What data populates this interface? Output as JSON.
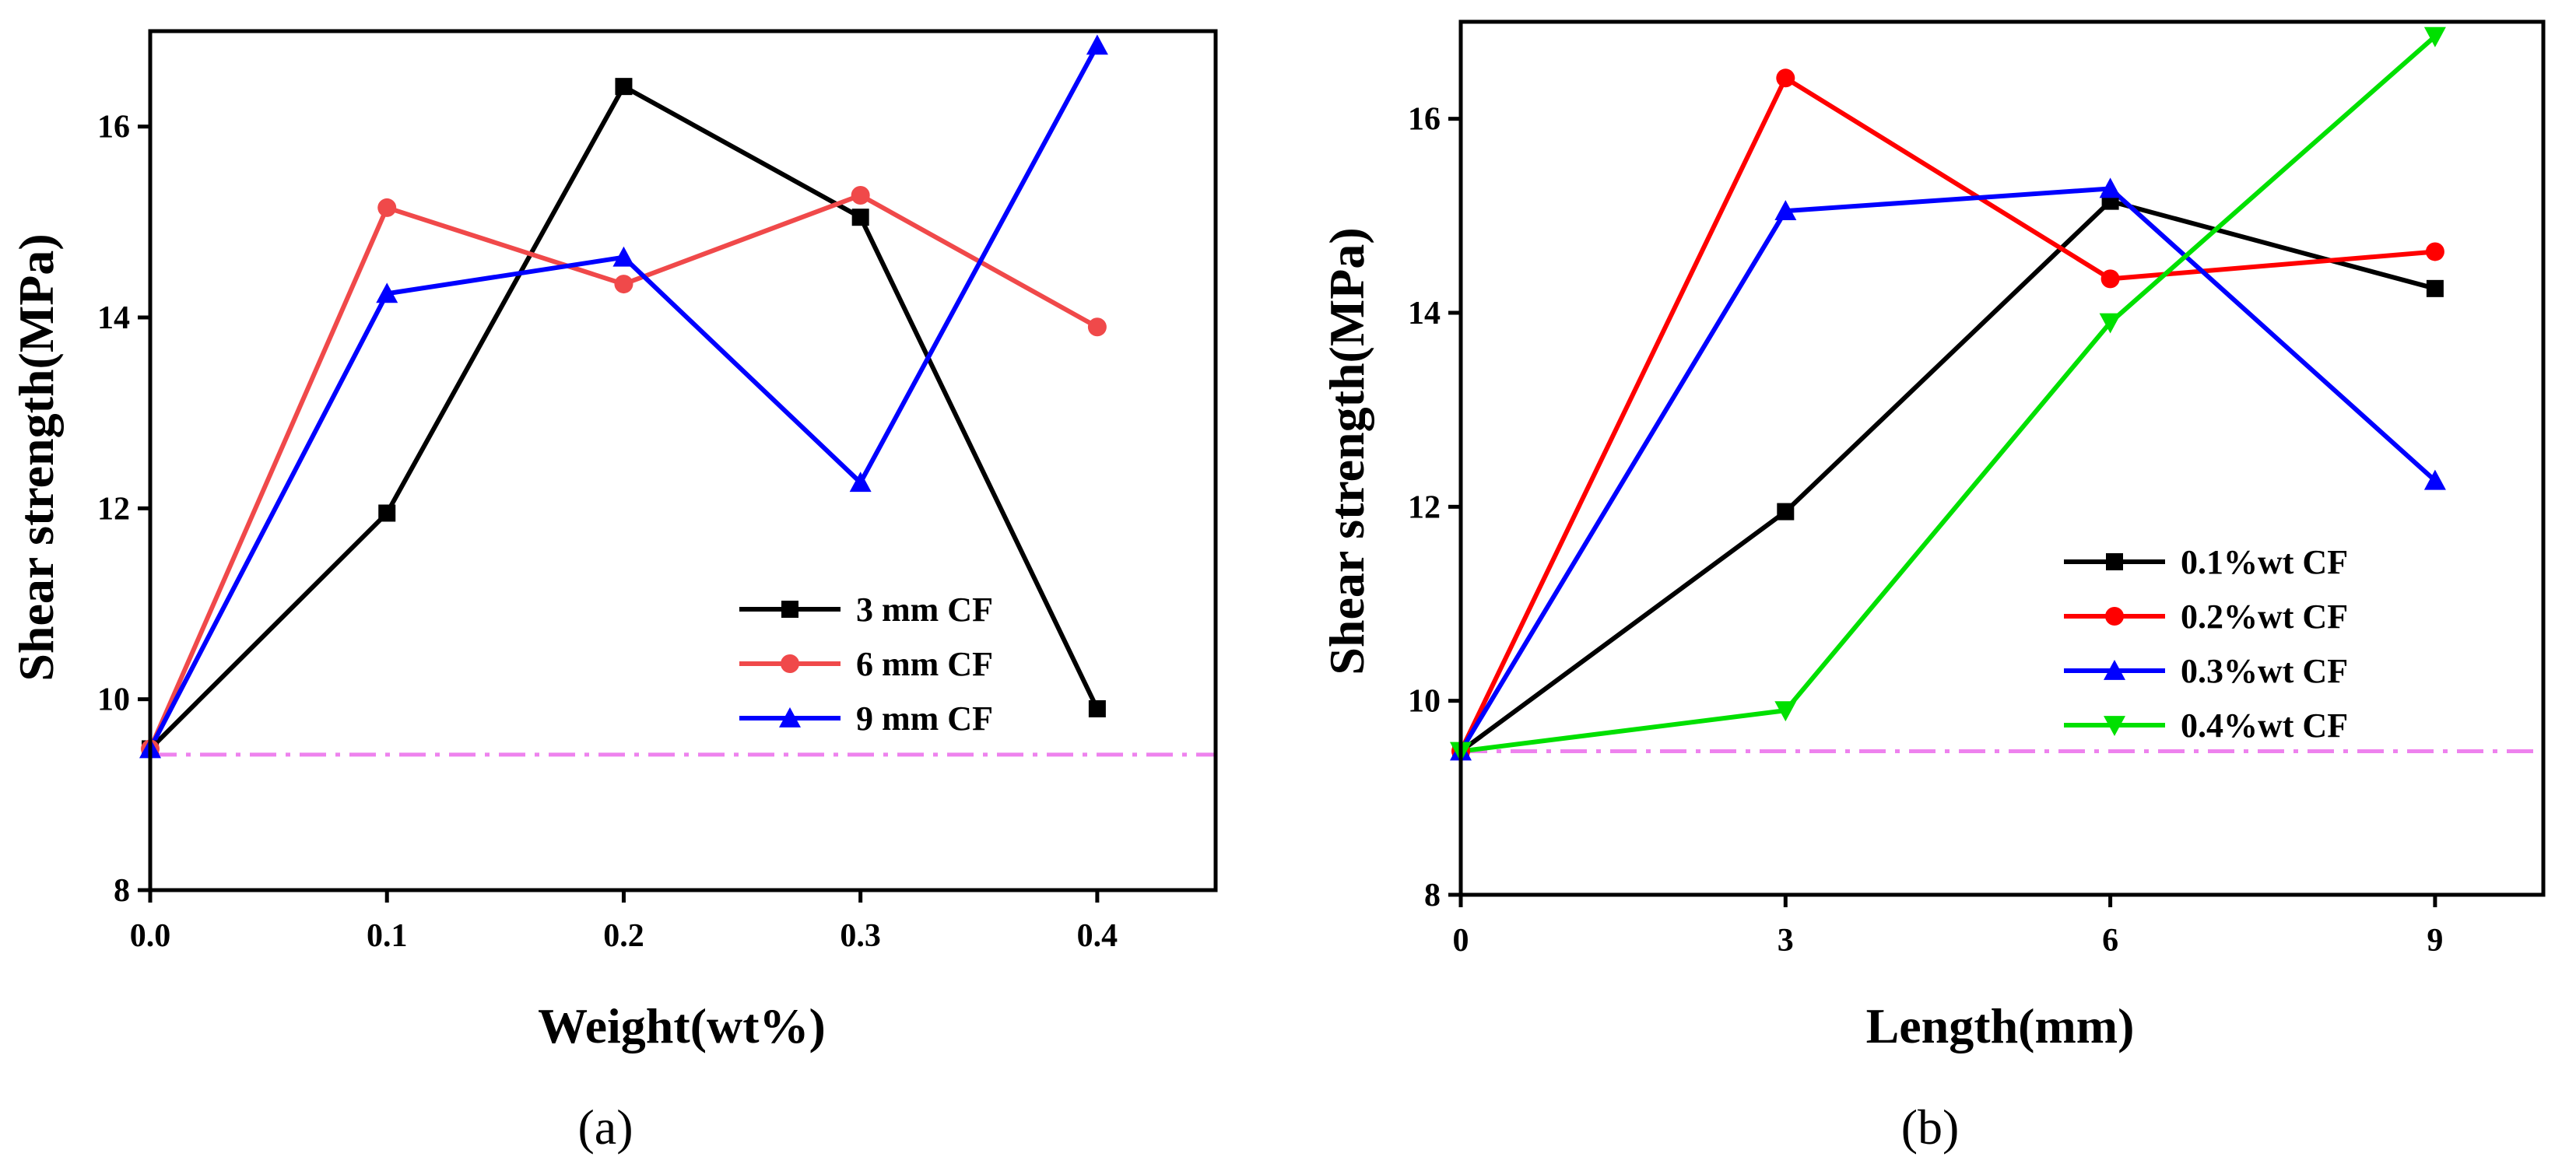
{
  "chart_data": [
    {
      "type": "line",
      "panel_label": "(a)",
      "xlabel": "Weight(wt%)",
      "ylabel": "Shear strength(MPa)",
      "xlim": [
        0,
        0.45
      ],
      "ylim": [
        8,
        17
      ],
      "xticks": [
        "0.0",
        "0.1",
        "0.2",
        "0.3",
        "0.4"
      ],
      "xtick_values": [
        0,
        0.1,
        0.2,
        0.3,
        0.4
      ],
      "yticks": [
        "8",
        "10",
        "12",
        "14",
        "16"
      ],
      "ytick_values": [
        8,
        10,
        12,
        14,
        16
      ],
      "x": [
        0,
        0.1,
        0.2,
        0.3,
        0.4
      ],
      "reference_line": 9.42,
      "reference_color": "#ee82ee",
      "legend_position": "center-right",
      "series": [
        {
          "name": "3 mm CF",
          "color": "#000000",
          "marker": "square",
          "values": [
            9.48,
            11.95,
            16.42,
            15.05,
            9.9
          ]
        },
        {
          "name": "6 mm CF",
          "color": "#f0494a",
          "marker": "circle",
          "values": [
            9.48,
            15.15,
            14.35,
            15.28,
            13.9
          ]
        },
        {
          "name": "9 mm CF",
          "color": "#0000ff",
          "marker": "triangle",
          "values": [
            9.48,
            14.25,
            14.63,
            12.27,
            16.85
          ]
        }
      ]
    },
    {
      "type": "line",
      "panel_label": "(b)",
      "xlabel": "Length(mm)",
      "ylabel": "Shear strength(MPa)",
      "xlim": [
        0,
        10
      ],
      "ylim": [
        8,
        17
      ],
      "xticks": [
        "0",
        "3",
        "6",
        "9"
      ],
      "xtick_values": [
        0,
        3,
        6,
        9
      ],
      "yticks": [
        "8",
        "10",
        "12",
        "14",
        "16"
      ],
      "ytick_values": [
        8,
        10,
        12,
        14,
        16
      ],
      "x": [
        0,
        3,
        6,
        9
      ],
      "reference_line": 9.48,
      "reference_color": "#ee82ee",
      "legend_position": "center-right",
      "series": [
        {
          "name": "0.1%wt CF",
          "color": "#000000",
          "marker": "square",
          "values": [
            9.48,
            11.95,
            15.15,
            14.25
          ]
        },
        {
          "name": "0.2%wt CF",
          "color": "#ff0000",
          "marker": "circle",
          "values": [
            9.48,
            16.42,
            14.35,
            14.63
          ]
        },
        {
          "name": "0.3%wt CF",
          "color": "#0000ff",
          "marker": "triangle",
          "values": [
            9.48,
            15.05,
            15.28,
            12.27
          ]
        },
        {
          "name": "0.4%wt CF",
          "color": "#00e000",
          "marker": "triangle-down",
          "values": [
            9.48,
            9.9,
            13.9,
            16.85
          ]
        }
      ]
    }
  ]
}
